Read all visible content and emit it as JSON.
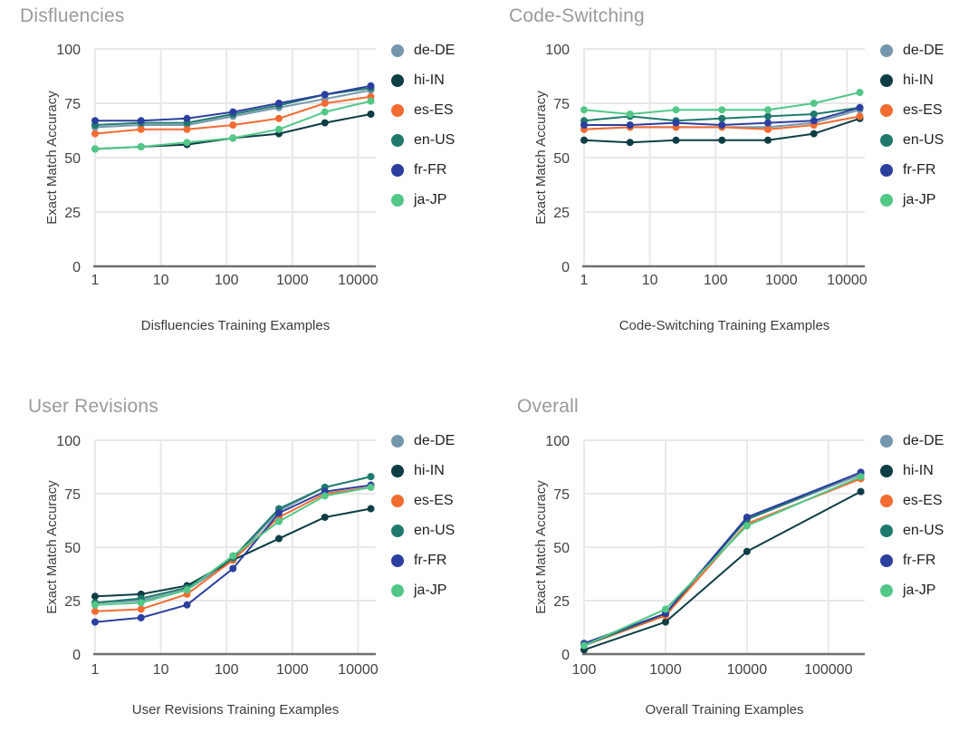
{
  "page": {
    "ylabel_shared": "Exact Match Accuracy",
    "colors": {
      "background": "#ffffff",
      "gridline": "#e8e8e8",
      "axis_line": "#6f6f6f",
      "chart_title": "#9a9a9a",
      "tick_label": "#424242",
      "legend_text": "#212121"
    },
    "legend": {
      "entries": [
        {
          "label": "de-DE",
          "color": "#7597ad"
        },
        {
          "label": "hi-IN",
          "color": "#0d3d45"
        },
        {
          "label": "es-ES",
          "color": "#f26b31"
        },
        {
          "label": "en-US",
          "color": "#1f7a6d"
        },
        {
          "label": "fr-FR",
          "color": "#2c3e9e"
        },
        {
          "label": "ja-JP",
          "color": "#52c788"
        }
      ]
    }
  },
  "chart_data": [
    {
      "type": "line",
      "title": "Disfluencies",
      "xlabel": "Disfluencies Training Examples",
      "ylabel": "Exact Match Accuracy",
      "x_scale": "log",
      "grid": true,
      "legend_position": "right",
      "xlim": [
        1,
        18600
      ],
      "ylim": [
        0,
        100
      ],
      "x_ticks": [
        1,
        10,
        100,
        1000,
        10000
      ],
      "y_ticks": [
        0,
        25,
        50,
        75,
        100
      ],
      "x": [
        1,
        5,
        25,
        125,
        625,
        3125,
        15625
      ],
      "series": [
        {
          "name": "de-DE",
          "color": "#7597ad",
          "values": [
            64,
            65,
            65,
            69,
            73,
            77,
            81
          ]
        },
        {
          "name": "hi-IN",
          "color": "#0d3d45",
          "values": [
            54,
            55,
            56,
            59,
            61,
            66,
            70
          ]
        },
        {
          "name": "es-ES",
          "color": "#f26b31",
          "values": [
            61,
            63,
            63,
            65,
            68,
            75,
            78
          ]
        },
        {
          "name": "en-US",
          "color": "#1f7a6d",
          "values": [
            65,
            66,
            66,
            70,
            74,
            79,
            82
          ]
        },
        {
          "name": "fr-FR",
          "color": "#2c3e9e",
          "values": [
            67,
            67,
            68,
            71,
            75,
            79,
            83
          ]
        },
        {
          "name": "ja-JP",
          "color": "#52c788",
          "values": [
            54,
            55,
            57,
            59,
            63,
            71,
            76
          ]
        }
      ]
    },
    {
      "type": "line",
      "title": "Code-Switching",
      "xlabel": "Code-Switching Training Examples",
      "ylabel": "Exact Match Accuracy",
      "x_scale": "log",
      "grid": true,
      "legend_position": "right",
      "xlim": [
        1,
        18600
      ],
      "ylim": [
        0,
        100
      ],
      "x_ticks": [
        1,
        10,
        100,
        1000,
        10000
      ],
      "y_ticks": [
        0,
        25,
        50,
        75,
        100
      ],
      "x": [
        1,
        5,
        25,
        125,
        625,
        3125,
        15625
      ],
      "series": [
        {
          "name": "de-DE",
          "color": "#7597ad",
          "values": [
            63,
            64,
            64,
            64,
            64,
            66,
            72
          ]
        },
        {
          "name": "hi-IN",
          "color": "#0d3d45",
          "values": [
            58,
            57,
            58,
            58,
            58,
            61,
            68
          ]
        },
        {
          "name": "es-ES",
          "color": "#f26b31",
          "values": [
            63,
            64,
            64,
            64,
            63,
            65,
            69
          ]
        },
        {
          "name": "en-US",
          "color": "#1f7a6d",
          "values": [
            67,
            69,
            67,
            68,
            69,
            70,
            73
          ]
        },
        {
          "name": "fr-FR",
          "color": "#2c3e9e",
          "values": [
            65,
            65,
            66,
            65,
            66,
            67,
            73
          ]
        },
        {
          "name": "ja-JP",
          "color": "#52c788",
          "values": [
            72,
            70,
            72,
            72,
            72,
            75,
            80
          ]
        }
      ]
    },
    {
      "type": "line",
      "title": "User Revisions",
      "xlabel": "User Revisions Training Examples",
      "ylabel": "Exact Match Accuracy",
      "x_scale": "log",
      "grid": true,
      "legend_position": "right",
      "xlim": [
        1,
        18600
      ],
      "ylim": [
        0,
        100
      ],
      "x_ticks": [
        1,
        10,
        100,
        1000,
        10000
      ],
      "y_ticks": [
        0,
        25,
        50,
        75,
        100
      ],
      "x": [
        1,
        5,
        25,
        125,
        625,
        3125,
        15625
      ],
      "series": [
        {
          "name": "de-DE",
          "color": "#7597ad",
          "values": [
            24,
            25,
            30,
            44,
            67,
            78,
            83
          ]
        },
        {
          "name": "hi-IN",
          "color": "#0d3d45",
          "values": [
            27,
            28,
            32,
            44,
            54,
            64,
            68
          ]
        },
        {
          "name": "es-ES",
          "color": "#f26b31",
          "values": [
            20,
            21,
            28,
            44,
            64,
            75,
            78
          ]
        },
        {
          "name": "en-US",
          "color": "#1f7a6d",
          "values": [
            24,
            26,
            31,
            45,
            68,
            78,
            83
          ]
        },
        {
          "name": "fr-FR",
          "color": "#2c3e9e",
          "values": [
            15,
            17,
            23,
            40,
            66,
            76,
            79
          ]
        },
        {
          "name": "ja-JP",
          "color": "#52c788",
          "values": [
            23,
            24,
            30,
            46,
            62,
            74,
            78
          ]
        }
      ]
    },
    {
      "type": "line",
      "title": "Overall",
      "xlabel": "Overall Training Examples",
      "ylabel": "Exact Match Accuracy",
      "x_scale": "log",
      "grid": true,
      "legend_position": "right",
      "xlim": [
        100,
        280000
      ],
      "ylim": [
        0,
        100
      ],
      "x_ticks": [
        100,
        1000,
        10000,
        100000
      ],
      "y_ticks": [
        0,
        25,
        50,
        75,
        100
      ],
      "x": [
        100,
        1000,
        10000,
        250000
      ],
      "series": [
        {
          "name": "de-DE",
          "color": "#7597ad",
          "values": [
            4,
            19,
            63,
            84
          ]
        },
        {
          "name": "hi-IN",
          "color": "#0d3d45",
          "values": [
            2,
            15,
            48,
            76
          ]
        },
        {
          "name": "es-ES",
          "color": "#f26b31",
          "values": [
            4,
            18,
            61,
            82
          ]
        },
        {
          "name": "en-US",
          "color": "#1f7a6d",
          "values": [
            4,
            19,
            63,
            85
          ]
        },
        {
          "name": "fr-FR",
          "color": "#2c3e9e",
          "values": [
            5,
            19,
            64,
            85
          ]
        },
        {
          "name": "ja-JP",
          "color": "#52c788",
          "values": [
            4,
            21,
            60,
            83
          ]
        }
      ]
    }
  ]
}
